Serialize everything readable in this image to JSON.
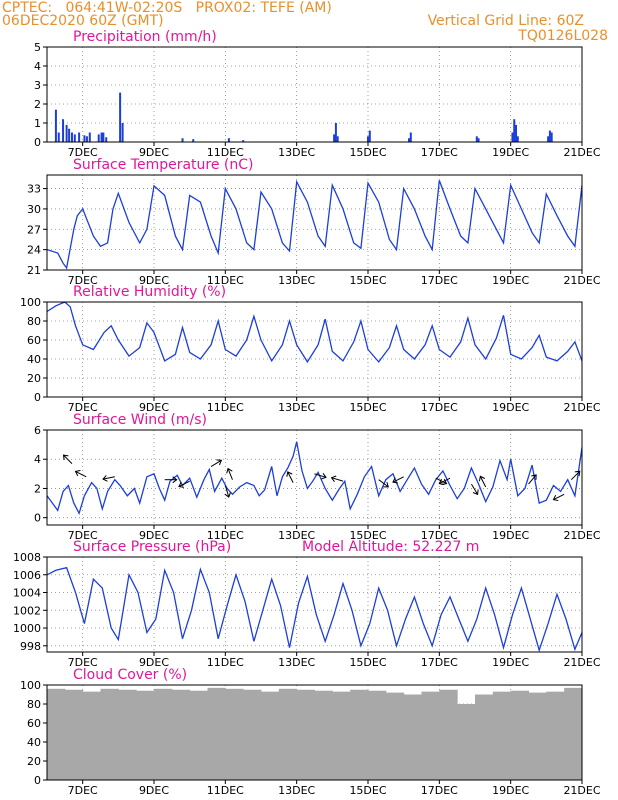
{
  "header": {
    "line1_left": "CPTEC:   064:41W-02:20S   PROX02: TEFE (AM)",
    "line2_left": "06DEC2020 60Z (GMT)",
    "line2_right": "Vertical Grid Line: 60Z",
    "code": "TQ0126L028"
  },
  "colors": {
    "header": "#e8902b",
    "title": "#e0179c",
    "line": "#1c3fdb",
    "cloud": "#a8a8a8",
    "grid": "#888888"
  },
  "x_axis": {
    "range": [
      6.0,
      21.0
    ],
    "tick_values": [
      7,
      9,
      11,
      13,
      15,
      17,
      19,
      21
    ],
    "tick_labels": [
      "7DEC",
      "9DEC",
      "11DEC",
      "13DEC",
      "15DEC",
      "17DEC",
      "19DEC",
      "21DEC"
    ]
  },
  "panels": [
    {
      "title": "Precipitation (mm/h)",
      "extra": ""
    },
    {
      "title": "Surface Temperature (nC)",
      "extra": ""
    },
    {
      "title": "Relative Humidity (%)",
      "extra": ""
    },
    {
      "title": "Surface Wind (m/s)",
      "extra": ""
    },
    {
      "title": "Surface Pressure (hPa)",
      "extra": "Model Altitude: 52.227 m"
    },
    {
      "title": "Cloud Cover (%)",
      "extra": ""
    }
  ],
  "chart_data": [
    {
      "type": "bar",
      "title": "Precipitation (mm/h)",
      "ylim": [
        0,
        5
      ],
      "yticks": [
        0,
        1,
        2,
        3,
        4,
        5
      ],
      "x": [
        6.25,
        6.33,
        6.45,
        6.55,
        6.62,
        6.7,
        6.78,
        6.9,
        7.05,
        7.12,
        7.2,
        7.45,
        7.53,
        7.58,
        7.66,
        8.05,
        8.12,
        9.8,
        10.1,
        11.1,
        11.5,
        14.05,
        14.1,
        14.15,
        15.0,
        15.05,
        16.15,
        16.2,
        18.05,
        18.1,
        19.05,
        19.1,
        19.15,
        19.2,
        20.05,
        20.1,
        20.15
      ],
      "values": [
        1.7,
        0.5,
        1.2,
        0.9,
        0.7,
        0.5,
        0.4,
        0.5,
        0.35,
        0.3,
        0.5,
        0.4,
        0.5,
        0.5,
        0.25,
        2.6,
        1.0,
        0.2,
        0.15,
        0.2,
        0.1,
        0.4,
        1.0,
        0.3,
        0.3,
        0.6,
        0.2,
        0.5,
        0.3,
        0.2,
        0.5,
        1.2,
        0.9,
        0.3,
        0.3,
        0.6,
        0.5
      ]
    },
    {
      "type": "line",
      "title": "Surface Temperature (nC)",
      "ylim": [
        21,
        35
      ],
      "yticks": [
        21,
        24,
        27,
        30,
        33
      ],
      "x": [
        6.0,
        6.3,
        6.45,
        6.55,
        6.75,
        6.85,
        7.0,
        7.3,
        7.5,
        7.7,
        7.85,
        8.0,
        8.3,
        8.6,
        8.8,
        9.0,
        9.3,
        9.6,
        9.8,
        10.0,
        10.3,
        10.6,
        10.8,
        11.0,
        11.3,
        11.6,
        11.8,
        12.0,
        12.3,
        12.6,
        12.8,
        13.0,
        13.3,
        13.6,
        13.8,
        14.0,
        14.3,
        14.6,
        14.8,
        15.0,
        15.3,
        15.6,
        15.8,
        16.0,
        16.3,
        16.6,
        16.8,
        17.0,
        17.3,
        17.6,
        17.8,
        18.0,
        18.3,
        18.6,
        18.8,
        19.0,
        19.3,
        19.6,
        19.8,
        20.0,
        20.3,
        20.6,
        20.8,
        21.0
      ],
      "values": [
        24,
        23.5,
        22.0,
        21.3,
        27,
        29,
        30,
        26,
        24.5,
        25,
        30,
        32.3,
        28,
        25,
        27,
        33.4,
        32,
        26,
        24,
        32,
        31,
        26,
        23.5,
        33,
        30,
        25,
        24,
        32.5,
        30,
        25,
        23.8,
        34,
        31,
        26,
        24.5,
        33.5,
        30,
        25,
        24.2,
        33.8,
        31,
        25.5,
        24,
        33,
        30,
        26,
        24,
        34.2,
        30,
        26,
        25,
        33,
        30,
        27,
        25,
        33.5,
        30,
        26.5,
        25,
        32.2,
        29,
        26,
        24.5,
        33.5
      ]
    },
    {
      "type": "line",
      "title": "Relative Humidity (%)",
      "ylim": [
        0,
        100
      ],
      "yticks": [
        0,
        20,
        40,
        60,
        80,
        100
      ],
      "x": [
        6.0,
        6.25,
        6.5,
        6.65,
        6.8,
        7.0,
        7.3,
        7.6,
        7.8,
        8.0,
        8.3,
        8.6,
        8.8,
        9.0,
        9.3,
        9.6,
        9.8,
        10.0,
        10.3,
        10.6,
        10.8,
        11.0,
        11.3,
        11.6,
        11.8,
        12.0,
        12.3,
        12.6,
        12.8,
        13.0,
        13.3,
        13.6,
        13.8,
        14.0,
        14.3,
        14.6,
        14.8,
        15.0,
        15.3,
        15.6,
        15.8,
        16.0,
        16.3,
        16.6,
        16.8,
        17.0,
        17.3,
        17.6,
        17.8,
        18.0,
        18.3,
        18.6,
        18.8,
        19.0,
        19.3,
        19.6,
        19.8,
        20.0,
        20.3,
        20.6,
        20.8,
        21.0
      ],
      "values": [
        90,
        96,
        100,
        95,
        75,
        55,
        50,
        68,
        75,
        60,
        43,
        52,
        78,
        68,
        38,
        45,
        73,
        47,
        40,
        55,
        80,
        50,
        43,
        60,
        85,
        60,
        38,
        55,
        80,
        55,
        37,
        55,
        82,
        48,
        38,
        58,
        80,
        50,
        37,
        52,
        75,
        50,
        40,
        55,
        75,
        50,
        42,
        58,
        83,
        55,
        40,
        62,
        86,
        45,
        40,
        52,
        65,
        42,
        38,
        48,
        58,
        38
      ]
    },
    {
      "type": "line",
      "title": "Surface Wind (m/s)",
      "ylim": [
        -0.5,
        6
      ],
      "yticks": [
        0,
        2,
        4,
        6
      ],
      "x": [
        6.0,
        6.15,
        6.3,
        6.45,
        6.6,
        6.75,
        6.9,
        7.05,
        7.25,
        7.4,
        7.55,
        7.7,
        7.9,
        8.05,
        8.25,
        8.45,
        8.6,
        8.8,
        9.0,
        9.15,
        9.3,
        9.45,
        9.65,
        9.8,
        10.0,
        10.2,
        10.4,
        10.55,
        10.7,
        10.9,
        11.05,
        11.2,
        11.4,
        11.6,
        11.8,
        11.95,
        12.1,
        12.3,
        12.45,
        12.6,
        12.75,
        12.9,
        13.0,
        13.15,
        13.3,
        13.45,
        13.6,
        13.8,
        14.0,
        14.2,
        14.35,
        14.5,
        14.7,
        14.9,
        15.1,
        15.3,
        15.5,
        15.7,
        15.9,
        16.1,
        16.3,
        16.5,
        16.7,
        16.9,
        17.1,
        17.3,
        17.5,
        17.7,
        17.9,
        18.1,
        18.3,
        18.5,
        18.7,
        18.9,
        19.0,
        19.2,
        19.4,
        19.6,
        19.8,
        20.0,
        20.2,
        20.4,
        20.6,
        20.8,
        21.0
      ],
      "values": [
        1.5,
        1.0,
        0.5,
        1.8,
        2.2,
        1.0,
        0.3,
        1.5,
        2.4,
        2.0,
        0.6,
        1.8,
        2.6,
        2.2,
        1.5,
        2.0,
        1.0,
        2.8,
        3.0,
        2.0,
        1.2,
        2.5,
        2.9,
        2.2,
        2.7,
        1.4,
        2.6,
        3.3,
        1.8,
        2.7,
        2.0,
        1.6,
        2.1,
        2.4,
        2.2,
        1.5,
        1.9,
        3.5,
        1.5,
        2.8,
        3.4,
        4.2,
        5.2,
        3.2,
        2.0,
        2.5,
        3.1,
        2.0,
        1.2,
        2.0,
        2.5,
        0.6,
        1.6,
        2.8,
        3.5,
        1.5,
        2.6,
        3.0,
        1.8,
        2.6,
        3.4,
        2.3,
        1.6,
        2.6,
        3.2,
        2.2,
        1.3,
        2.0,
        3.4,
        2.3,
        1.1,
        2.1,
        3.9,
        2.6,
        4.0,
        1.5,
        2.0,
        3.6,
        1.0,
        1.2,
        2.2,
        1.8,
        2.6,
        1.5,
        4.8
      ]
    },
    {
      "type": "line",
      "title": "Surface Pressure (hPa)",
      "ylim": [
        997.3,
        1008
      ],
      "yticks": [
        998,
        1000,
        1002,
        1004,
        1006,
        1008
      ],
      "x": [
        6.0,
        6.25,
        6.55,
        6.8,
        7.05,
        7.3,
        7.55,
        7.8,
        8.0,
        8.3,
        8.55,
        8.8,
        9.05,
        9.3,
        9.55,
        9.8,
        10.05,
        10.3,
        10.55,
        10.8,
        11.05,
        11.3,
        11.55,
        11.8,
        12.05,
        12.3,
        12.55,
        12.8,
        13.05,
        13.3,
        13.55,
        13.8,
        14.05,
        14.3,
        14.55,
        14.8,
        15.05,
        15.3,
        15.55,
        15.8,
        16.05,
        16.3,
        16.55,
        16.8,
        17.05,
        17.3,
        17.55,
        17.8,
        18.05,
        18.3,
        18.55,
        18.8,
        19.05,
        19.3,
        19.55,
        19.8,
        20.05,
        20.3,
        20.55,
        20.8,
        21.0
      ],
      "values": [
        1006.0,
        1006.5,
        1006.8,
        1004.0,
        1000.5,
        1005.5,
        1004.5,
        1000.0,
        998.7,
        1006.0,
        1004.0,
        999.5,
        1001.0,
        1006.5,
        1004.0,
        998.8,
        1002.0,
        1006.6,
        1004.0,
        998.8,
        1002.5,
        1006.0,
        1003.0,
        998.5,
        1002.0,
        1005.5,
        1002.5,
        997.8,
        1002.8,
        1005.8,
        1001.5,
        998.5,
        1001.5,
        1005.0,
        1002.0,
        998.0,
        1000.5,
        1004.5,
        1002.0,
        998.0,
        1001.0,
        1003.5,
        1000.5,
        998.0,
        1001.5,
        1003.5,
        1001.0,
        998.5,
        1001.0,
        1004.5,
        1001.5,
        997.8,
        1001.5,
        1004.5,
        1001.0,
        997.5,
        1000.5,
        1003.8,
        1001.0,
        997.6,
        999.5
      ]
    },
    {
      "type": "bar",
      "title": "Cloud Cover (%)",
      "ylim": [
        0,
        100
      ],
      "yticks": [
        0,
        20,
        40,
        60,
        80,
        100
      ],
      "x": [
        6.3,
        7.0,
        7.5,
        8.0,
        8.5,
        9.0,
        9.5,
        10.0,
        10.5,
        11.0,
        11.5,
        12.0,
        12.5,
        13.0,
        13.5,
        14.0,
        14.5,
        15.0,
        15.5,
        16.0,
        16.5,
        17.0,
        17.5,
        18.0,
        18.5,
        19.0,
        19.5,
        20.0,
        20.5,
        21.0
      ],
      "values": [
        96,
        95,
        93,
        96,
        95,
        94,
        96,
        95,
        94,
        97,
        96,
        95,
        93,
        96,
        95,
        94,
        93,
        95,
        94,
        92,
        90,
        93,
        95,
        80,
        90,
        93,
        94,
        92,
        93,
        97
      ]
    }
  ]
}
